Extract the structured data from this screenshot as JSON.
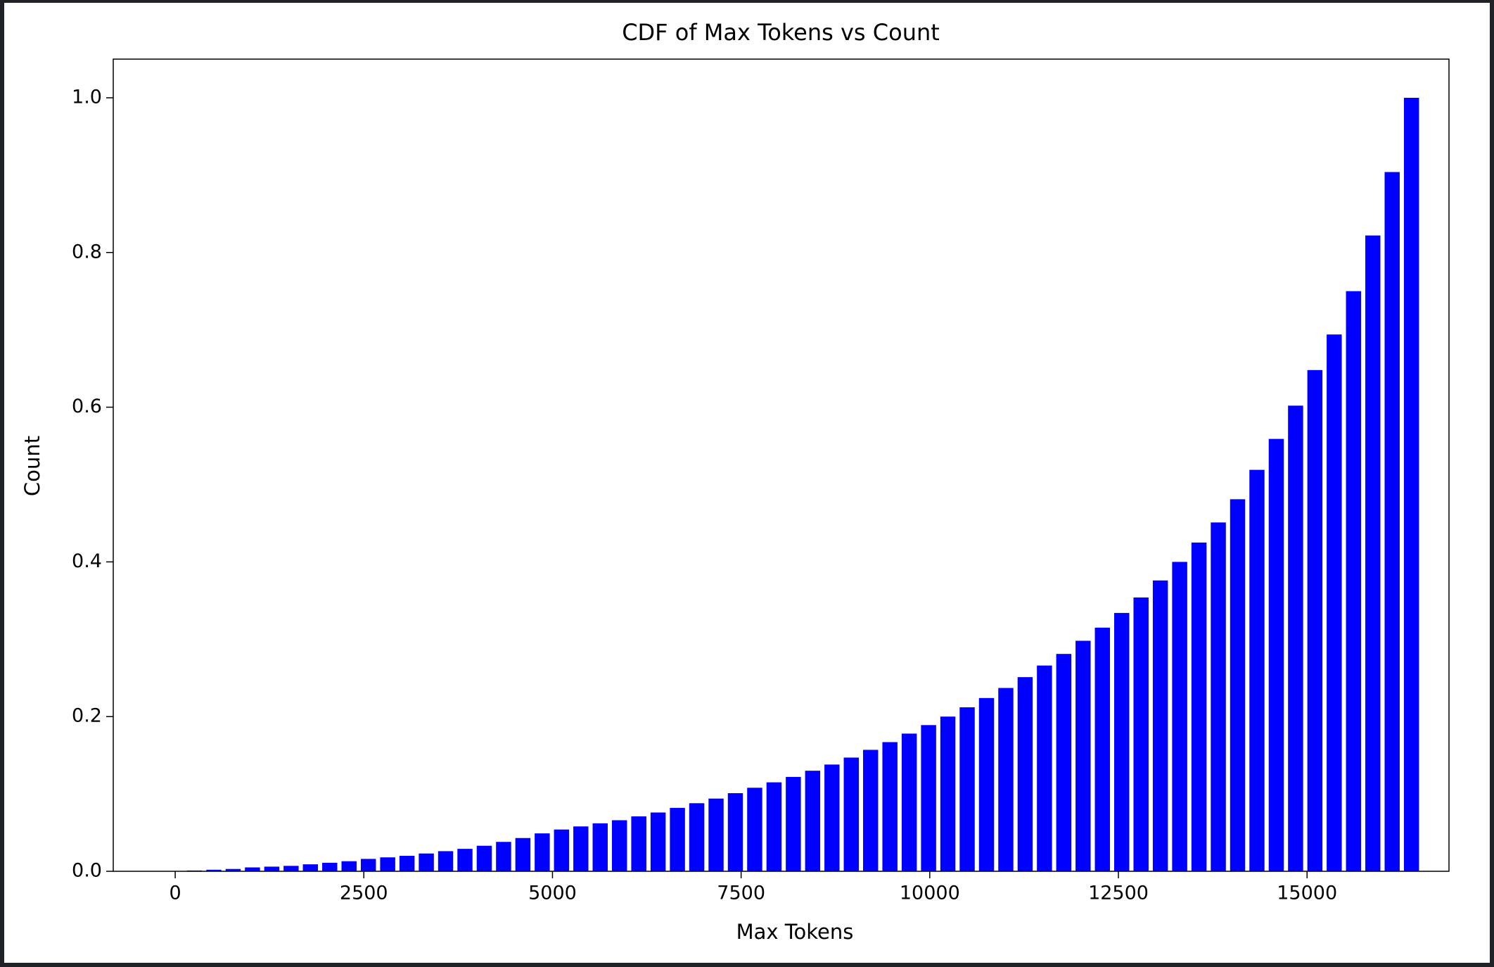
{
  "chart_data": {
    "type": "bar",
    "title": "CDF of Max Tokens vs Count",
    "xlabel": "Max Tokens",
    "ylabel": "Count",
    "color": "#0000ff",
    "x": [
      256,
      512,
      768,
      1024,
      1280,
      1536,
      1792,
      2048,
      2304,
      2560,
      2816,
      3072,
      3328,
      3584,
      3840,
      4096,
      4352,
      4608,
      4864,
      5120,
      5376,
      5632,
      5888,
      6144,
      6400,
      6656,
      6912,
      7168,
      7424,
      7680,
      7936,
      8192,
      8448,
      8704,
      8960,
      9216,
      9472,
      9728,
      9984,
      10240,
      10496,
      10752,
      11008,
      11264,
      11520,
      11776,
      12032,
      12288,
      12544,
      12800,
      13056,
      13312,
      13568,
      13824,
      14080,
      14336,
      14592,
      14848,
      15104,
      15360,
      15616,
      15872,
      16128,
      16384
    ],
    "values": [
      0.001,
      0.002,
      0.003,
      0.005,
      0.006,
      0.007,
      0.009,
      0.011,
      0.013,
      0.016,
      0.018,
      0.02,
      0.023,
      0.026,
      0.029,
      0.033,
      0.038,
      0.043,
      0.049,
      0.054,
      0.058,
      0.062,
      0.066,
      0.071,
      0.076,
      0.082,
      0.088,
      0.094,
      0.101,
      0.108,
      0.115,
      0.122,
      0.13,
      0.138,
      0.147,
      0.157,
      0.167,
      0.178,
      0.189,
      0.2,
      0.212,
      0.224,
      0.237,
      0.251,
      0.266,
      0.281,
      0.298,
      0.315,
      0.334,
      0.354,
      0.376,
      0.4,
      0.425,
      0.451,
      0.481,
      0.519,
      0.559,
      0.602,
      0.648,
      0.694,
      0.75,
      0.822,
      0.904,
      1.0
    ],
    "xlim": [
      -821,
      16881
    ],
    "xticks": [
      0,
      2500,
      5000,
      7500,
      10000,
      12500,
      15000
    ],
    "ylim": [
      0,
      1.05
    ],
    "yticks": [
      {
        "value": 0,
        "label": "0.0"
      },
      {
        "value": 0.2,
        "label": "0.2"
      },
      {
        "value": 0.4,
        "label": "0.4"
      },
      {
        "value": 0.6,
        "label": "0.6"
      },
      {
        "value": 0.8,
        "label": "0.8"
      },
      {
        "value": 1,
        "label": "1.0"
      }
    ],
    "bar_width": 200
  }
}
